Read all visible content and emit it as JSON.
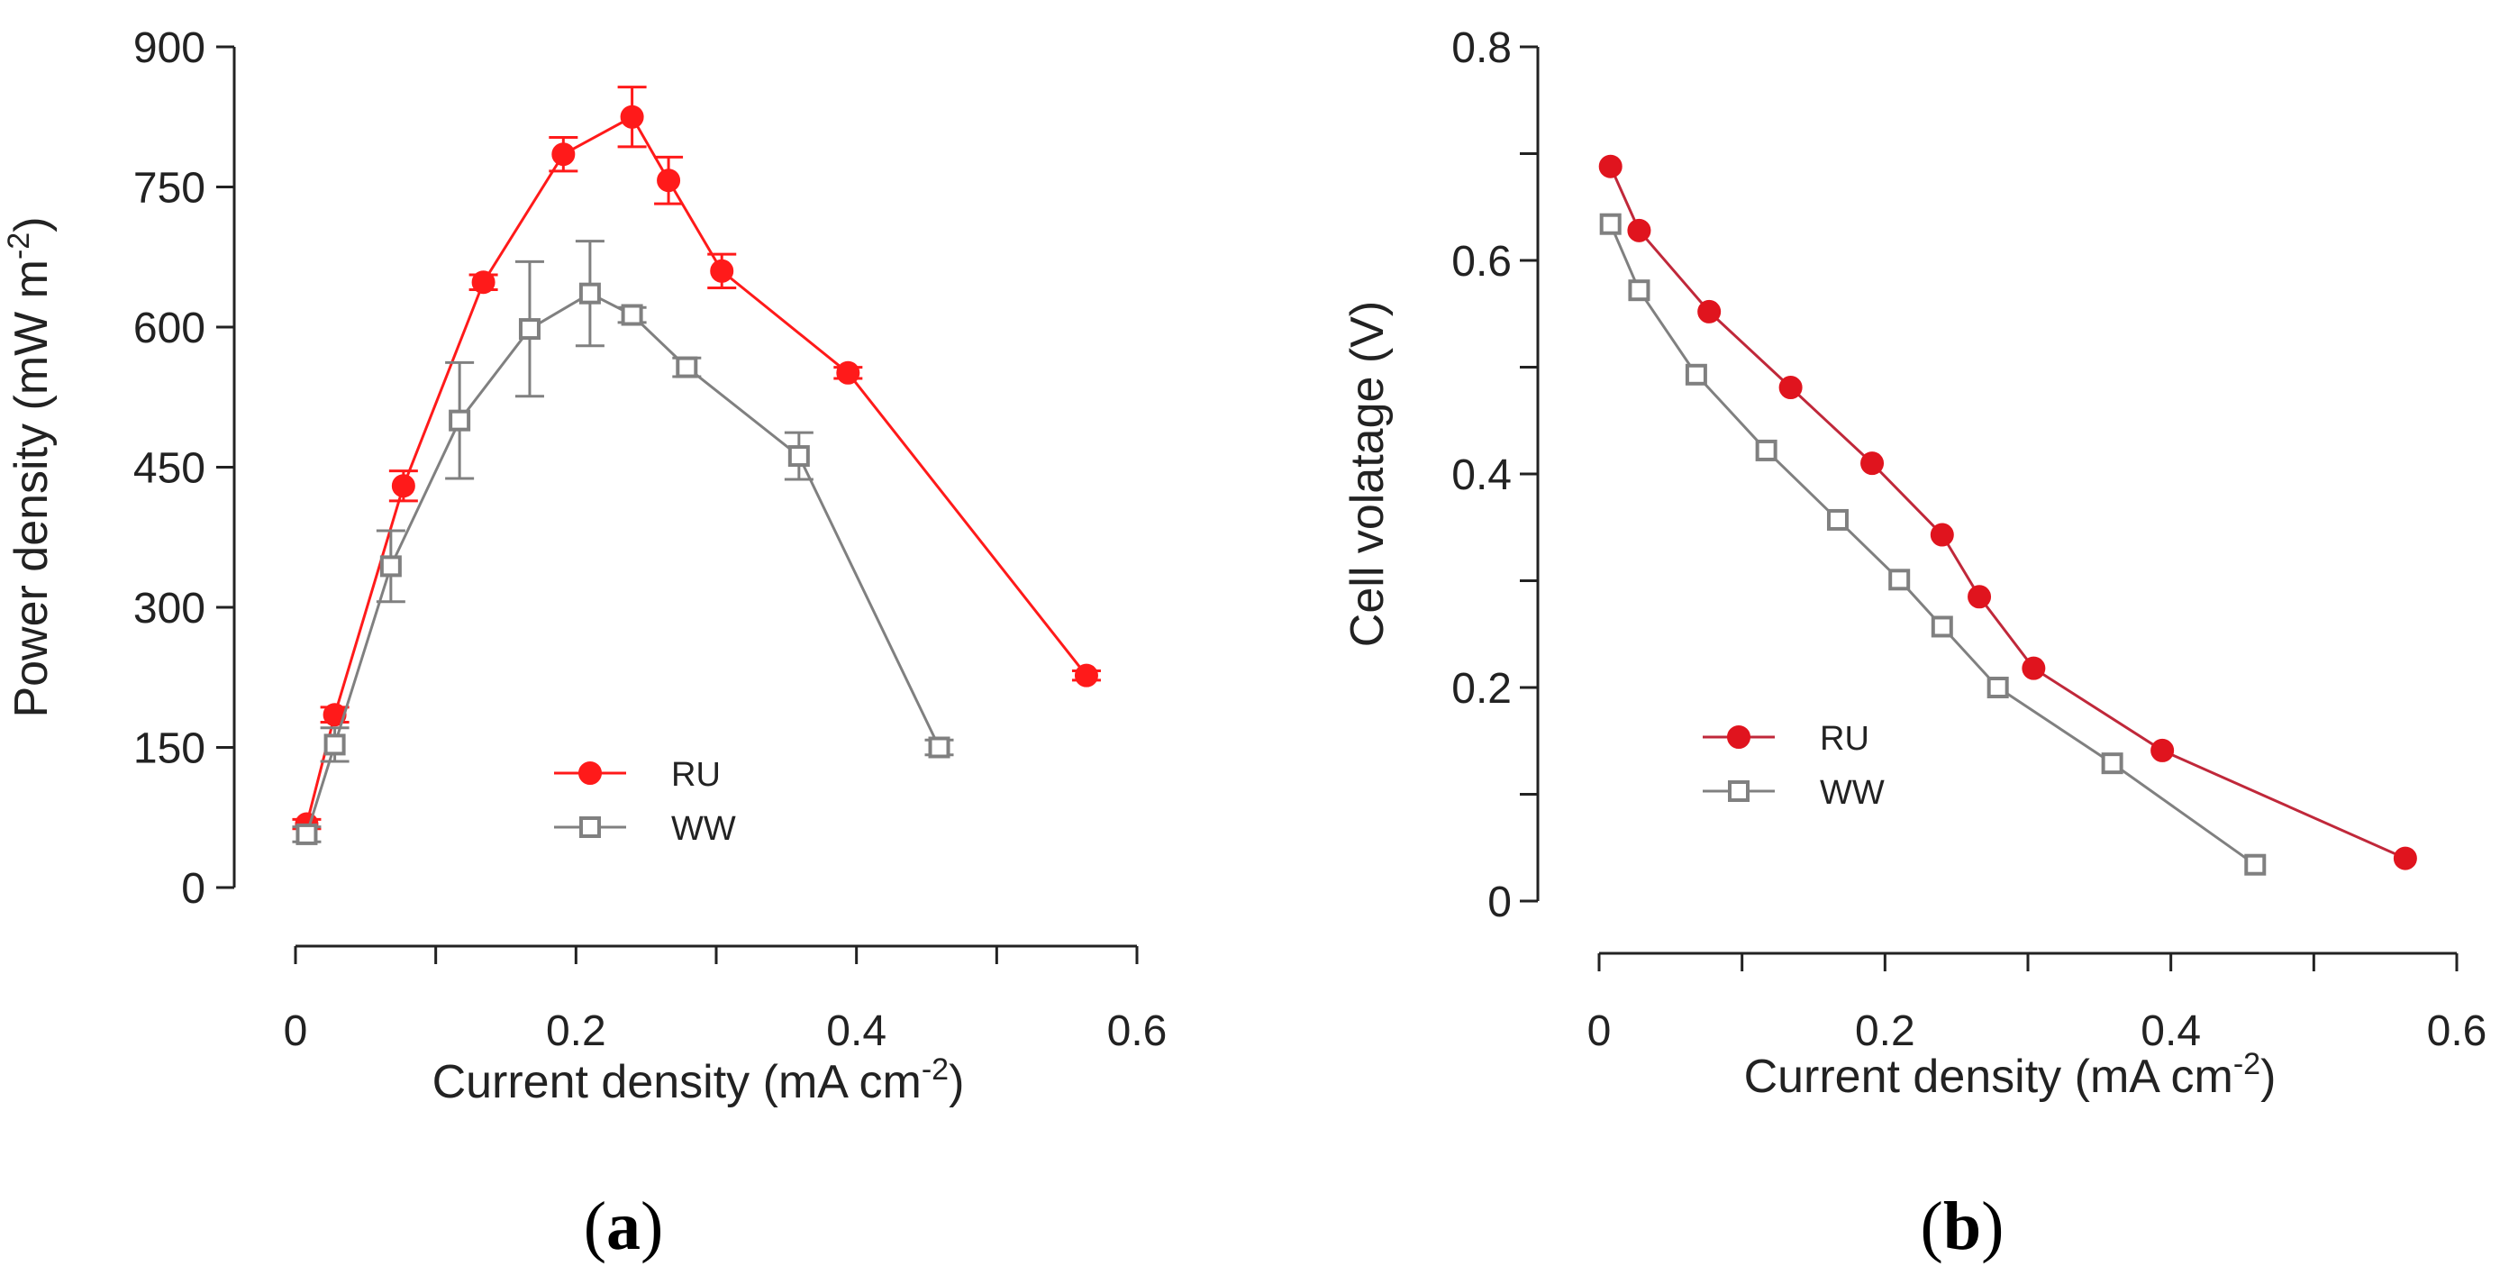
{
  "chart_data": [
    {
      "type": "line",
      "panel_label": "a",
      "title": "",
      "xlabel": "Current density (mA cm",
      "xlabel_sup": "-2",
      "xlabel_end": ")",
      "ylabel": "Power density (mW m",
      "ylabel_sup": "-2",
      "ylabel_end": ")",
      "xlim": [
        0,
        0.6
      ],
      "ylim": [
        0,
        900
      ],
      "x_ticks": [
        0,
        0.1,
        0.2,
        0.3,
        0.4,
        0.5,
        0.6
      ],
      "x_tick_labels": [
        "0",
        "",
        "0.2",
        "",
        "0.4",
        "",
        "0.6"
      ],
      "y_ticks": [
        0,
        150,
        300,
        450,
        600,
        750,
        900
      ],
      "y_tick_labels": [
        "0",
        "150",
        "300",
        "450",
        "600",
        "750",
        "900"
      ],
      "legend_position": "lower-center",
      "series": [
        {
          "name": "RU",
          "color": "#ff1a1a",
          "marker": "filled-circle",
          "x": [
            0.008,
            0.028,
            0.077,
            0.134,
            0.191,
            0.24,
            0.266,
            0.304,
            0.394,
            0.564
          ],
          "y": [
            68,
            185,
            430,
            648,
            785,
            825,
            757,
            660,
            551,
            227
          ],
          "err": [
            5,
            8,
            16,
            8,
            18,
            32,
            25,
            18,
            6,
            5
          ]
        },
        {
          "name": "WW",
          "color": "#808080",
          "marker": "open-square",
          "x": [
            0.008,
            0.028,
            0.068,
            0.117,
            0.167,
            0.21,
            0.24,
            0.279,
            0.359,
            0.459
          ],
          "y": [
            57,
            153,
            344,
            500,
            598,
            636,
            613,
            557,
            462,
            150
          ],
          "err": [
            8,
            18,
            38,
            62,
            72,
            56,
            8,
            10,
            25,
            8
          ]
        }
      ]
    },
    {
      "type": "line",
      "panel_label": "b",
      "title": "",
      "xlabel": "Current density (mA cm",
      "xlabel_sup": "-2",
      "xlabel_end": ")",
      "ylabel": "Cell volatage (V)",
      "xlim": [
        0,
        0.6
      ],
      "ylim": [
        0,
        0.8
      ],
      "x_ticks": [
        0,
        0.1,
        0.2,
        0.3,
        0.4,
        0.5,
        0.6
      ],
      "x_tick_labels": [
        "0",
        "",
        "0.2",
        "",
        "0.4",
        "",
        "0.6"
      ],
      "y_ticks": [
        0,
        0.1,
        0.2,
        0.3,
        0.4,
        0.5,
        0.6,
        0.7,
        0.8
      ],
      "y_tick_labels": [
        "0",
        "",
        "0.2",
        "",
        "0.4",
        "",
        "0.6",
        "",
        "0.8"
      ],
      "legend_position": "lower-left",
      "series": [
        {
          "name": "RU",
          "color": "#e0141e",
          "line_color": "#c0283a",
          "marker": "filled-circle",
          "x": [
            0.008,
            0.028,
            0.077,
            0.134,
            0.191,
            0.24,
            0.266,
            0.304,
            0.394,
            0.564
          ],
          "y": [
            0.688,
            0.628,
            0.552,
            0.481,
            0.41,
            0.343,
            0.285,
            0.218,
            0.141,
            0.04
          ]
        },
        {
          "name": "WW",
          "color": "#808080",
          "marker": "open-square",
          "x": [
            0.008,
            0.028,
            0.068,
            0.117,
            0.167,
            0.21,
            0.24,
            0.279,
            0.359,
            0.459
          ],
          "y": [
            0.634,
            0.572,
            0.493,
            0.422,
            0.357,
            0.301,
            0.257,
            0.2,
            0.129,
            0.034
          ]
        }
      ]
    }
  ],
  "captions": {
    "a": "a",
    "b": "b"
  }
}
